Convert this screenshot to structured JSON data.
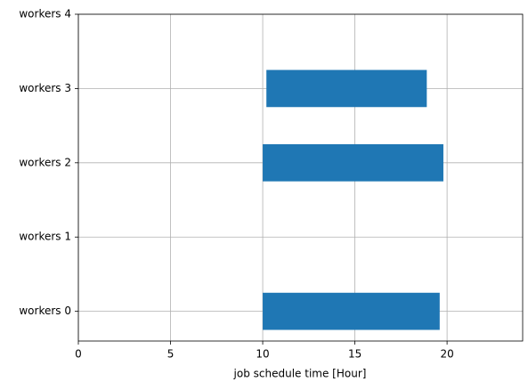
{
  "chart_data": {
    "type": "gantt",
    "categories": [
      "workers 0",
      "workers 1",
      "workers 2",
      "workers 3",
      "workers 4"
    ],
    "start": [
      10,
      null,
      10,
      10.2,
      null
    ],
    "end": [
      19.6,
      null,
      19.8,
      18.9,
      null
    ],
    "color": "#1f77b4",
    "xlabel": "job schedule time [Hour]",
    "xlim": [
      0,
      24.1
    ],
    "xticks": [
      0,
      5,
      10,
      15,
      20
    ],
    "ylim": [
      -0.4,
      4
    ],
    "grid": true
  }
}
